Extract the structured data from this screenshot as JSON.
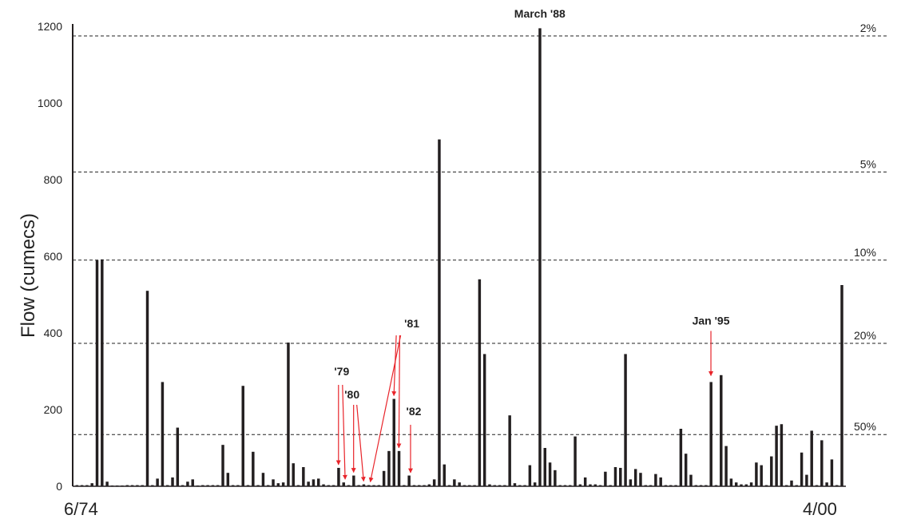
{
  "chart_data": {
    "type": "bar",
    "ylabel": "Flow (cumecs)",
    "ylim": [
      0,
      1200
    ],
    "yticks": [
      "0",
      "200",
      "400",
      "600",
      "800",
      "1000",
      "1200"
    ],
    "x_start_label": "6/74",
    "x_end_label": "4/00",
    "colors": {
      "bars": "#231f20",
      "annotation": "#e8242a",
      "reference": "#222222"
    },
    "values": [
      3,
      3,
      3,
      8,
      590,
      592,
      12,
      2,
      2,
      2,
      3,
      3,
      3,
      3,
      510,
      3,
      20,
      272,
      3,
      23,
      153,
      3,
      12,
      18,
      2,
      3,
      3,
      3,
      3,
      108,
      35,
      3,
      3,
      262,
      3,
      90,
      3,
      35,
      3,
      18,
      8,
      10,
      375,
      60,
      3,
      50,
      12,
      18,
      20,
      5,
      3,
      3,
      48,
      10,
      3,
      28,
      3,
      5,
      3,
      3,
      3,
      40,
      92,
      228,
      92,
      3,
      28,
      3,
      3,
      3,
      5,
      18,
      905,
      57,
      3,
      18,
      10,
      3,
      3,
      3,
      540,
      345,
      5,
      3,
      3,
      3,
      185,
      8,
      3,
      3,
      55,
      10,
      1195,
      100,
      62,
      42,
      3,
      3,
      3,
      130,
      5,
      23,
      5,
      5,
      3,
      38,
      3,
      50,
      48,
      345,
      18,
      45,
      35,
      3,
      3,
      32,
      23,
      3,
      3,
      3,
      150,
      85,
      30,
      3,
      3,
      3,
      272,
      3,
      290,
      105,
      20,
      10,
      5,
      5,
      10,
      62,
      55,
      3,
      78,
      158,
      162,
      3,
      15,
      3,
      88,
      30,
      145,
      3,
      120,
      10,
      70,
      3,
      525
    ],
    "reference_lines": [
      {
        "label": "2%",
        "value": 1175
      },
      {
        "label": "5%",
        "value": 820
      },
      {
        "label": "10%",
        "value": 590
      },
      {
        "label": "20%",
        "value": 373
      },
      {
        "label": "50%",
        "value": 135
      }
    ],
    "annotations": [
      {
        "label": "March '88",
        "bar": 92
      },
      {
        "label": "Jan '95",
        "bar": 126
      },
      {
        "label": "'79",
        "bars": [
          52,
          53
        ]
      },
      {
        "label": "'80",
        "bars": [
          55,
          57
        ]
      },
      {
        "label": "'81",
        "bars": [
          58,
          63,
          64
        ]
      },
      {
        "label": "'82",
        "bars": [
          66
        ]
      }
    ]
  }
}
